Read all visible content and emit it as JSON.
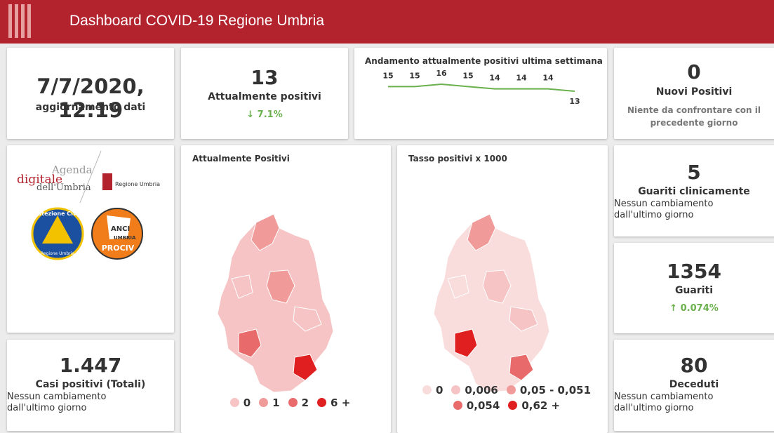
{
  "header": {
    "title": "Dashboard COVID-19 Regione Umbria"
  },
  "update": {
    "datetime": "7/7/2020, 12:19",
    "label": "aggiornamento dati"
  },
  "positivi": {
    "value": 13,
    "label": "Attualmente positivi",
    "change": "7.1%"
  },
  "chart_data": {
    "type": "line",
    "title": "Andamento attualmente positivi ultima settimana",
    "values": [
      15,
      15,
      16,
      15,
      14,
      14,
      14,
      13
    ],
    "color": "#6ab04c"
  },
  "nuovi": {
    "value": 0,
    "label": "Nuovi Positivi",
    "note": "Niente da confrontare con il precedente giorno"
  },
  "logos": {
    "agenda": [
      "Agenda",
      "digitale",
      "dell'Umbria"
    ],
    "regione": "Regione Umbria",
    "protezione": "Protezione Civile",
    "protezione_sub": "Regione Umbria",
    "anci": [
      "ANCI",
      "UMBRIA",
      "PROCIV"
    ]
  },
  "map_positivi": {
    "title": "Attualmente Positivi",
    "legend": [
      {
        "label": "0",
        "color": "#f6c4c4"
      },
      {
        "label": "1",
        "color": "#f19a9a"
      },
      {
        "label": "2",
        "color": "#e86a6a"
      },
      {
        "label": "6 +",
        "color": "#e02020"
      }
    ]
  },
  "map_tasso": {
    "title": "Tasso positivi x 1000",
    "legend": [
      {
        "label": "0",
        "color": "#f9dcdc"
      },
      {
        "label": "0,006",
        "color": "#f6c4c4"
      },
      {
        "label": "0,05 - 0,051",
        "color": "#f19a9a"
      },
      {
        "label": "0,054",
        "color": "#e86a6a"
      },
      {
        "label": "0,62 +",
        "color": "#e02020"
      }
    ]
  },
  "guariti_clinicamente": {
    "value": 5,
    "label": "Guariti clinicamente",
    "note": "Nessun cambiamento dall'ultimo giorno"
  },
  "guariti": {
    "value": 1354,
    "label": "Guariti",
    "change": "0.074%"
  },
  "casi_totali": {
    "value": "1.447",
    "label": "Casi positivi (Totali)",
    "note": "Nessun cambiamento dall'ultimo giorno"
  },
  "deceduti": {
    "value": 80,
    "label": "Deceduti",
    "note": "Nessun cambiamento dall'ultimo giorno"
  }
}
